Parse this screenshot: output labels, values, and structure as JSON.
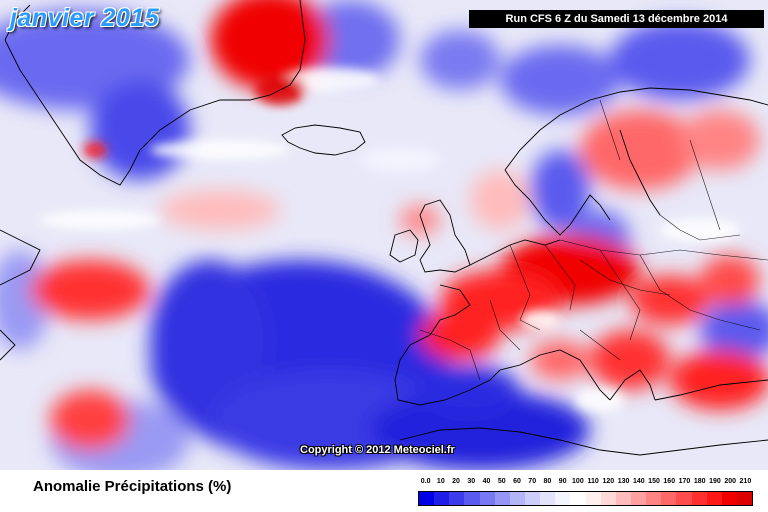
{
  "map": {
    "title": "janvier 2015",
    "run_info": "Run CFS 6 Z du Samedi 13 décembre 2014",
    "copyright": "Copyright © 2012 Meteociel.fr"
  },
  "legend": {
    "metric": "Anomalie Précipitations (%)",
    "labels": [
      "0.0",
      "10",
      "20",
      "30",
      "40",
      "50",
      "60",
      "70",
      "80",
      "90",
      "100",
      "110",
      "120",
      "130",
      "140",
      "150",
      "160",
      "170",
      "180",
      "190",
      "200",
      "210"
    ],
    "colors": [
      "#0000e6",
      "#1e1ee8",
      "#3c3cec",
      "#5a5af0",
      "#7878f3",
      "#9696f5",
      "#b4b4f8",
      "#cdcdfa",
      "#e3e3fc",
      "#f5f5ff",
      "#ffffff",
      "#fff0f0",
      "#ffd8d8",
      "#ffbcbc",
      "#ffa0a0",
      "#ff8484",
      "#ff6868",
      "#ff4c4c",
      "#ff3030",
      "#ff1818",
      "#f00000",
      "#dc0000"
    ]
  }
}
